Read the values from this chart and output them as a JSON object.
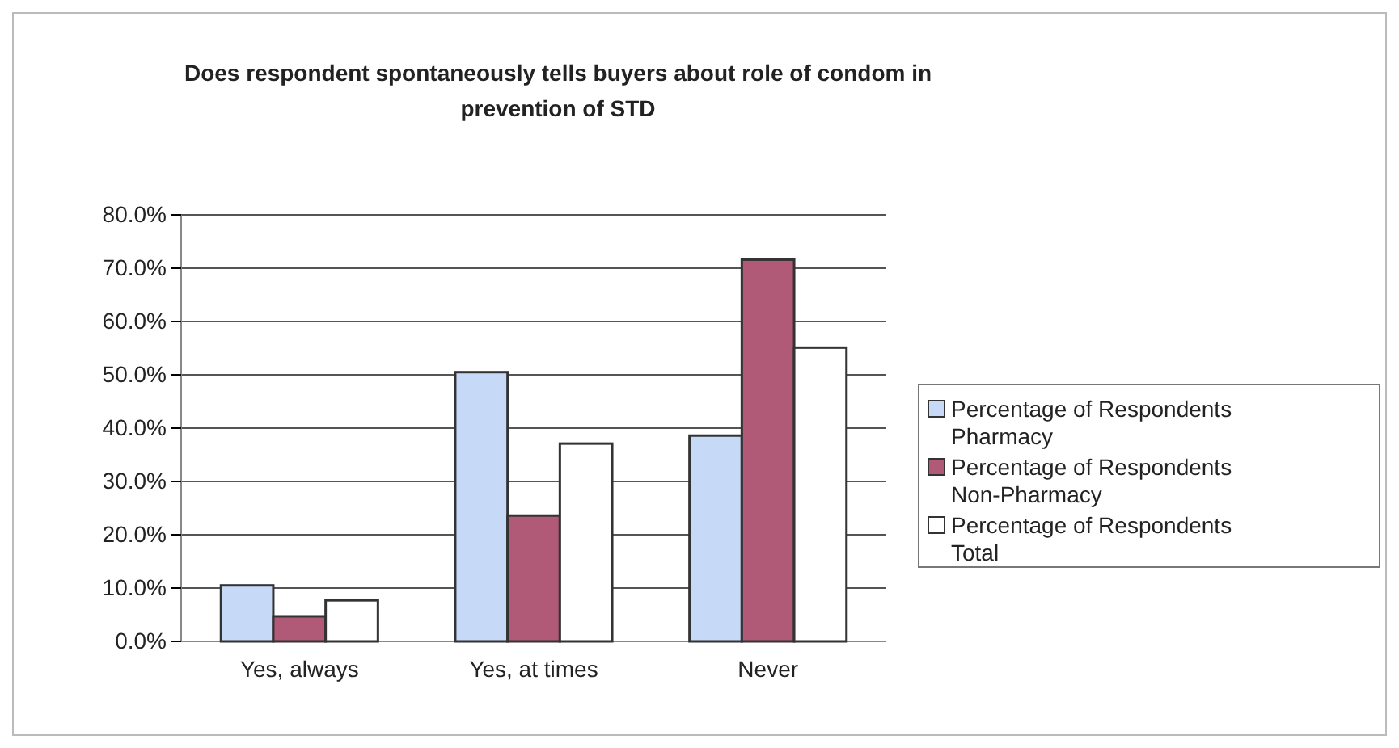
{
  "chart_data": {
    "type": "bar",
    "title": "Does respondent spontaneously tells buyers about role of condom in prevention of STD",
    "categories": [
      "Yes, always",
      "Yes, at times",
      "Never"
    ],
    "series": [
      {
        "name": "Percentage of Respondents Pharmacy",
        "color": "#c6d9f7",
        "values": [
          10.5,
          50.5,
          38.6
        ]
      },
      {
        "name": "Percentage of Respondents Non-Pharmacy",
        "color": "#b05a78",
        "values": [
          4.7,
          23.6,
          71.6
        ]
      },
      {
        "name": "Percentage of Respondents Total",
        "color": "#ffffff",
        "values": [
          7.7,
          37.1,
          55.1
        ]
      }
    ],
    "ylim": [
      0,
      80
    ],
    "yticks": [
      {
        "value": 0,
        "label": "0.0%"
      },
      {
        "value": 10,
        "label": "10.0%"
      },
      {
        "value": 20,
        "label": "20.0%"
      },
      {
        "value": 30,
        "label": "30.0%"
      },
      {
        "value": 40,
        "label": "40.0%"
      },
      {
        "value": 50,
        "label": "50.0%"
      },
      {
        "value": 60,
        "label": "60.0%"
      },
      {
        "value": 70,
        "label": "70.0%"
      },
      {
        "value": 80,
        "label": "80.0%"
      }
    ],
    "grid": "y",
    "legend": "right"
  }
}
